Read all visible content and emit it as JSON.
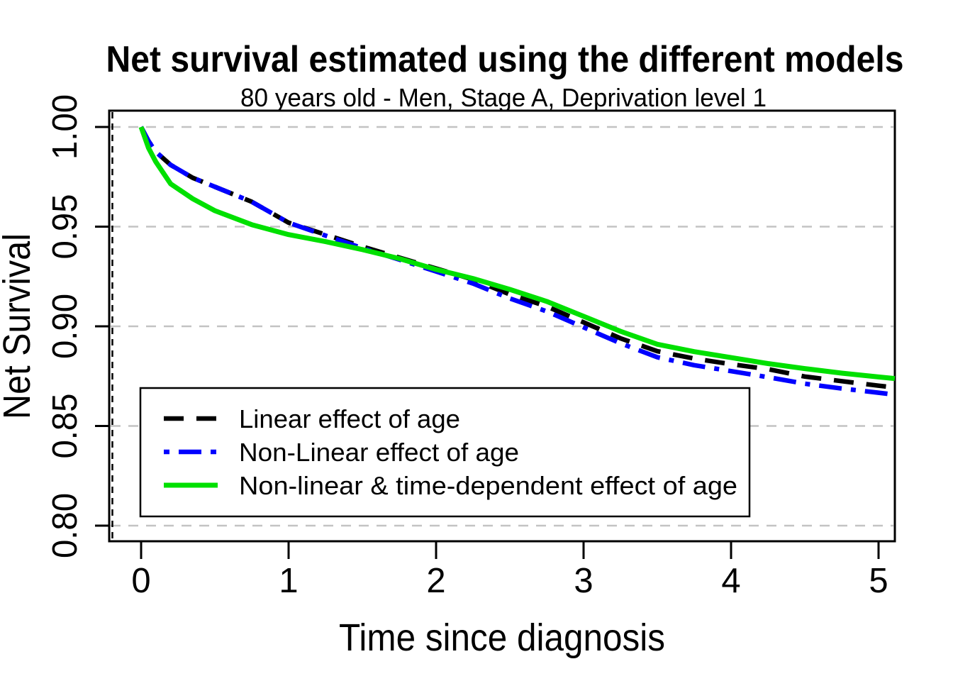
{
  "figure": {
    "background": "#ffffff",
    "axis_color": "#000000",
    "grid_color": "#c3c3c3"
  },
  "chart_data": {
    "type": "line",
    "title": "Net survival estimated using the different models",
    "subtitle": "80 years old -  Men, Stage A, Deprivation level 1",
    "xlabel": "Time since diagnosis",
    "ylabel": "Net Survival",
    "xlim": [
      -0.21,
      5.11
    ],
    "ylim": [
      0.791,
      1.008
    ],
    "x_ticks": [
      0,
      1,
      2,
      3,
      4,
      5
    ],
    "x_tick_labels": [
      "0",
      "1",
      "2",
      "3",
      "4",
      "5"
    ],
    "y_ticks": [
      0.8,
      0.85,
      0.9,
      0.95,
      1.0
    ],
    "y_tick_labels": [
      "0.80",
      "0.85",
      "0.90",
      "0.95",
      "1.00"
    ],
    "grid": "horizontal-dashed",
    "legend_position": "inside-bottom-left",
    "x": [
      0,
      0.05,
      0.1,
      0.2,
      0.35,
      0.5,
      0.75,
      1,
      1.25,
      1.5,
      1.75,
      2,
      2.25,
      2.5,
      2.75,
      3,
      3.25,
      3.5,
      3.75,
      4,
      4.25,
      4.5,
      4.75,
      5,
      5.11
    ],
    "series": [
      {
        "name": "Linear effect of age",
        "color": "#000000",
        "line_style": "dashed",
        "line_width": 6.5,
        "values": [
          1.0,
          0.993,
          0.9875,
          0.981,
          0.9745,
          0.97,
          0.9625,
          0.952,
          0.946,
          0.94,
          0.9345,
          0.929,
          0.9235,
          0.916,
          0.91,
          0.902,
          0.894,
          0.8875,
          0.8838,
          0.881,
          0.8785,
          0.8748,
          0.8725,
          0.8702,
          0.8693
        ]
      },
      {
        "name": "Non-Linear effect of age",
        "color": "#0000ff",
        "line_style": "dotdash",
        "line_width": 6.5,
        "values": [
          1.0,
          0.993,
          0.9875,
          0.981,
          0.9745,
          0.97,
          0.9625,
          0.952,
          0.9455,
          0.9392,
          0.9335,
          0.9275,
          0.9215,
          0.914,
          0.9075,
          0.8995,
          0.8915,
          0.8845,
          0.8805,
          0.8775,
          0.8745,
          0.8712,
          0.8688,
          0.8667,
          0.8657
        ]
      },
      {
        "name": "Non-linear & time-dependent effect of age",
        "color": "#00e000",
        "line_style": "solid",
        "line_width": 7,
        "values": [
          1.0,
          0.9895,
          0.9825,
          0.9715,
          0.964,
          0.958,
          0.951,
          0.946,
          0.9425,
          0.9385,
          0.934,
          0.9285,
          0.924,
          0.9185,
          0.9125,
          0.905,
          0.8975,
          0.891,
          0.8873,
          0.8843,
          0.8813,
          0.8788,
          0.8765,
          0.8746,
          0.8738
        ]
      }
    ]
  }
}
